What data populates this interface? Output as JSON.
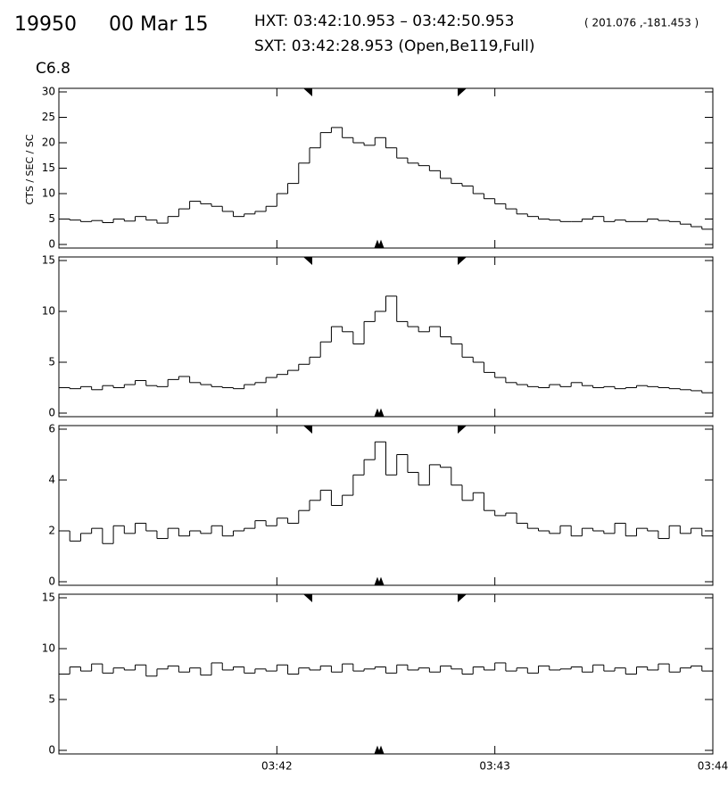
{
  "header": {
    "event": "19950",
    "date": "00 Mar 15",
    "hxt": "HXT: 03:42:10.953 – 03:42:50.953",
    "position": "( 201.076 ,-181.453 )",
    "sxt": "SXT: 03:42:28.953 (Open,Be119,Full)",
    "goes_class": "C6.8"
  },
  "chart_data": [
    {
      "type": "step",
      "ylabel": "CTS / SEC / SC",
      "xlim": [
        0,
        180
      ],
      "ylim": [
        0,
        30
      ],
      "yticks": [
        0,
        5,
        10,
        15,
        20,
        25,
        30
      ],
      "x": [
        0,
        3,
        6,
        9,
        12,
        15,
        18,
        21,
        24,
        27,
        30,
        33,
        36,
        39,
        42,
        45,
        48,
        51,
        54,
        57,
        60,
        63,
        66,
        69,
        72,
        75,
        78,
        81,
        84,
        87,
        90,
        93,
        96,
        99,
        102,
        105,
        108,
        111,
        114,
        117,
        120,
        123,
        126,
        129,
        132,
        135,
        138,
        141,
        144,
        147,
        150,
        153,
        156,
        159,
        162,
        165,
        168,
        171,
        174,
        177
      ],
      "values": [
        5,
        4.8,
        4.5,
        4.7,
        4.3,
        5,
        4.6,
        5.5,
        4.8,
        4.2,
        5.5,
        7,
        8.5,
        8,
        7.5,
        6.5,
        5.5,
        6,
        6.5,
        7.5,
        10,
        12,
        16,
        19,
        22,
        23,
        21,
        20,
        19.5,
        21,
        19,
        17,
        16,
        15.5,
        14.5,
        13,
        12,
        11.5,
        10,
        9,
        8,
        7,
        6,
        5.5,
        5,
        4.8,
        4.5,
        4.5,
        5,
        5.5,
        4.5,
        4.8,
        4.5,
        4.5,
        5,
        4.7,
        4.5,
        4,
        3.5,
        3
      ],
      "color": "#000000"
    },
    {
      "type": "step",
      "xlim": [
        0,
        180
      ],
      "ylim": [
        0,
        15
      ],
      "yticks": [
        0,
        5,
        10,
        15
      ],
      "x": [
        0,
        3,
        6,
        9,
        12,
        15,
        18,
        21,
        24,
        27,
        30,
        33,
        36,
        39,
        42,
        45,
        48,
        51,
        54,
        57,
        60,
        63,
        66,
        69,
        72,
        75,
        78,
        81,
        84,
        87,
        90,
        93,
        96,
        99,
        102,
        105,
        108,
        111,
        114,
        117,
        120,
        123,
        126,
        129,
        132,
        135,
        138,
        141,
        144,
        147,
        150,
        153,
        156,
        159,
        162,
        165,
        168,
        171,
        174,
        177
      ],
      "values": [
        2.5,
        2.4,
        2.6,
        2.3,
        2.7,
        2.5,
        2.8,
        3.2,
        2.7,
        2.6,
        3.3,
        3.6,
        3,
        2.8,
        2.6,
        2.5,
        2.4,
        2.8,
        3,
        3.5,
        3.8,
        4.2,
        4.8,
        5.5,
        7,
        8.5,
        8,
        6.8,
        9,
        10,
        11.5,
        9,
        8.5,
        8,
        8.5,
        7.5,
        6.8,
        5.5,
        5,
        4,
        3.5,
        3,
        2.8,
        2.6,
        2.5,
        2.8,
        2.6,
        3,
        2.7,
        2.5,
        2.6,
        2.4,
        2.5,
        2.7,
        2.6,
        2.5,
        2.4,
        2.3,
        2.2,
        2
      ],
      "color": "#000000"
    },
    {
      "type": "step",
      "xlim": [
        0,
        180
      ],
      "ylim": [
        0,
        6
      ],
      "yticks": [
        0,
        2,
        4,
        6
      ],
      "x": [
        0,
        3,
        6,
        9,
        12,
        15,
        18,
        21,
        24,
        27,
        30,
        33,
        36,
        39,
        42,
        45,
        48,
        51,
        54,
        57,
        60,
        63,
        66,
        69,
        72,
        75,
        78,
        81,
        84,
        87,
        90,
        93,
        96,
        99,
        102,
        105,
        108,
        111,
        114,
        117,
        120,
        123,
        126,
        129,
        132,
        135,
        138,
        141,
        144,
        147,
        150,
        153,
        156,
        159,
        162,
        165,
        168,
        171,
        174,
        177
      ],
      "values": [
        2,
        1.6,
        1.9,
        2.1,
        1.5,
        2.2,
        1.9,
        2.3,
        2,
        1.7,
        2.1,
        1.8,
        2,
        1.9,
        2.2,
        1.8,
        2,
        2.1,
        2.4,
        2.2,
        2.5,
        2.3,
        2.8,
        3.2,
        3.6,
        3,
        3.4,
        4.2,
        4.8,
        5.5,
        4.2,
        5,
        4.3,
        3.8,
        4.6,
        4.5,
        3.8,
        3.2,
        3.5,
        2.8,
        2.6,
        2.7,
        2.3,
        2.1,
        2,
        1.9,
        2.2,
        1.8,
        2.1,
        2,
        1.9,
        2.3,
        1.8,
        2.1,
        2,
        1.7,
        2.2,
        1.9,
        2.1,
        1.8
      ],
      "color": "#000000"
    },
    {
      "type": "step",
      "xlim": [
        0,
        180
      ],
      "ylim": [
        0,
        15
      ],
      "yticks": [
        0,
        5,
        10,
        15
      ],
      "xticks": [
        {
          "value": 60,
          "label": "03:42"
        },
        {
          "value": 120,
          "label": "03:43"
        },
        {
          "value": 180,
          "label": "03:44"
        }
      ],
      "x": [
        0,
        3,
        6,
        9,
        12,
        15,
        18,
        21,
        24,
        27,
        30,
        33,
        36,
        39,
        42,
        45,
        48,
        51,
        54,
        57,
        60,
        63,
        66,
        69,
        72,
        75,
        78,
        81,
        84,
        87,
        90,
        93,
        96,
        99,
        102,
        105,
        108,
        111,
        114,
        117,
        120,
        123,
        126,
        129,
        132,
        135,
        138,
        141,
        144,
        147,
        150,
        153,
        156,
        159,
        162,
        165,
        168,
        171,
        174,
        177
      ],
      "values": [
        7.5,
        8.2,
        7.8,
        8.5,
        7.6,
        8.1,
        7.9,
        8.4,
        7.3,
        8,
        8.3,
        7.7,
        8.1,
        7.4,
        8.6,
        7.9,
        8.2,
        7.6,
        8,
        7.8,
        8.4,
        7.5,
        8.1,
        7.9,
        8.3,
        7.7,
        8.5,
        7.8,
        8,
        8.2,
        7.6,
        8.4,
        7.9,
        8.1,
        7.7,
        8.3,
        8,
        7.5,
        8.2,
        7.9,
        8.6,
        7.8,
        8.1,
        7.6,
        8.3,
        7.9,
        8,
        8.2,
        7.7,
        8.4,
        7.8,
        8.1,
        7.5,
        8.2,
        7.9,
        8.5,
        7.7,
        8.1,
        8.3,
        7.8
      ],
      "color": "#000000"
    }
  ]
}
